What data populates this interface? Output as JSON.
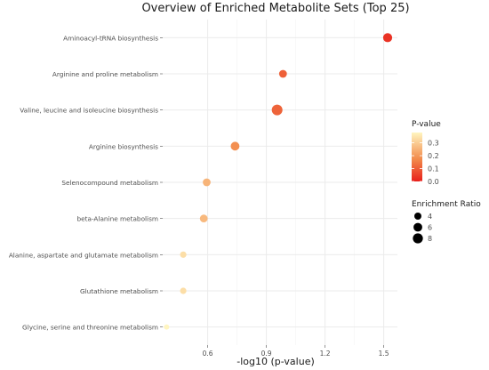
{
  "chart_data": {
    "type": "scatter",
    "title": "Overview of Enriched Metabolite Sets (Top 25)",
    "xlabel": "-log10 (p-value)",
    "ylabel": "",
    "xlim": [
      0.37,
      1.57
    ],
    "xticks": [
      0.6,
      0.9,
      1.2,
      1.5
    ],
    "grid": true,
    "categories": [
      "Aminoacyl-tRNA biosynthesis",
      "Arginine and proline metabolism",
      "Valine, leucine and isoleucine biosynthesis",
      "Arginine biosynthesis",
      "Selenocompound metabolism",
      "beta-Alanine metabolism",
      "Alanine, aspartate and glutamate metabolism",
      "Glutathione metabolism",
      "Glycine, serine and threonine metabolism"
    ],
    "points": [
      {
        "name": "Aminoacyl-tRNA biosynthesis",
        "x": 1.52,
        "p": 0.03,
        "ratio": 6.5
      },
      {
        "name": "Arginine and proline metabolism",
        "x": 0.985,
        "p": 0.104,
        "ratio": 4.8
      },
      {
        "name": "Valine, leucine and isoleucine biosynthesis",
        "x": 0.955,
        "p": 0.111,
        "ratio": 9.0
      },
      {
        "name": "Arginine biosynthesis",
        "x": 0.74,
        "p": 0.182,
        "ratio": 6.0
      },
      {
        "name": "Selenocompound metabolism",
        "x": 0.595,
        "p": 0.254,
        "ratio": 4.8
      },
      {
        "name": "beta-Alanine metabolism",
        "x": 0.58,
        "p": 0.263,
        "ratio": 4.8
      },
      {
        "name": "Alanine, aspartate and glutamate metabolism",
        "x": 0.475,
        "p": 0.335,
        "ratio": 3.2
      },
      {
        "name": "Glutathione metabolism",
        "x": 0.475,
        "p": 0.335,
        "ratio": 3.2
      },
      {
        "name": "Glycine, serine and threonine metabolism",
        "x": 0.39,
        "p": 0.407,
        "ratio": 2.2
      }
    ],
    "legend_color": {
      "title": "P-value",
      "ticks": [
        0.3,
        0.2,
        0.1,
        0.0
      ],
      "tick_labels": [
        "0.3",
        "0.2",
        "0.1",
        "0.0"
      ],
      "range": [
        0.0,
        0.38
      ],
      "low_color": "#e8201c",
      "high_color": "#fff5c0"
    },
    "legend_size": {
      "title": "Enrichment Ratio",
      "values": [
        4,
        6,
        8
      ],
      "labels": [
        "4",
        "6",
        "8"
      ]
    },
    "legend_placement": "right",
    "colors": {
      "grid": "#ebebeb",
      "text": "#4d4d4d",
      "low": "#e8201c",
      "mid": "#f08a4b",
      "high": "#fff5c0"
    }
  }
}
